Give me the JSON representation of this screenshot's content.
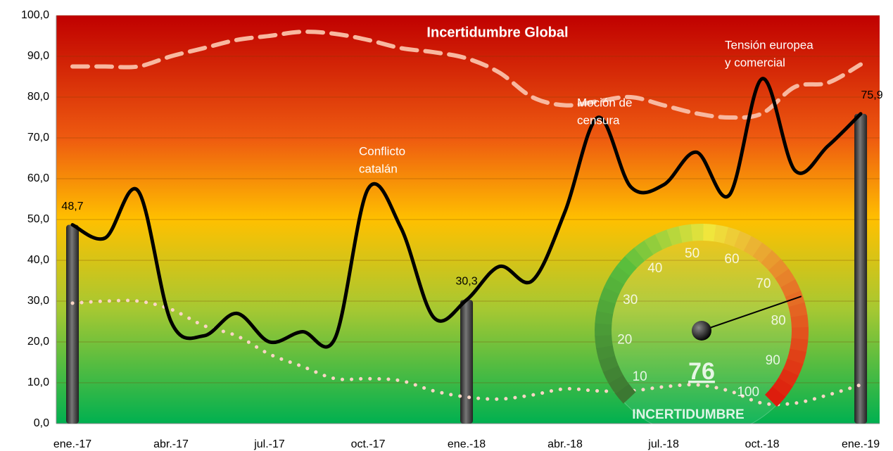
{
  "chart_data": {
    "type": "line",
    "title": "Incertidumbre Global",
    "categories": [
      "ene.-17",
      null,
      null,
      "abr.-17",
      null,
      null,
      "jul.-17",
      null,
      null,
      "oct.-17",
      null,
      null,
      "ene.-18",
      null,
      null,
      "abr.-18",
      null,
      null,
      "jul.-18",
      null,
      null,
      "oct.-18",
      null,
      null,
      "ene.-19"
    ],
    "series": [
      {
        "color": "#000000",
        "style": "solid",
        "values": [
          48.7,
          45.5,
          57,
          25,
          21.5,
          27,
          20,
          22.5,
          21,
          57.5,
          48,
          26,
          30.3,
          38.5,
          35,
          52,
          75,
          58,
          58.5,
          66.5,
          56,
          84.5,
          62,
          68,
          75.9
        ]
      },
      {
        "color": "#f8b8a0",
        "style": "dashed",
        "values": [
          87.5,
          87.5,
          87.5,
          90,
          92,
          94,
          95,
          96,
          95.5,
          94,
          92,
          91,
          89.5,
          86,
          80,
          78,
          79,
          80,
          78,
          76,
          75,
          76,
          82.5,
          83.5,
          88
        ]
      },
      {
        "color": "#fbd5c5",
        "style": "dotted",
        "values": [
          29.5,
          30,
          30,
          28,
          24,
          21.5,
          17,
          14,
          11,
          11,
          10.5,
          8,
          6.5,
          6,
          7,
          8.5,
          8,
          8,
          9,
          9.5,
          8,
          5,
          5,
          7,
          9.5
        ]
      }
    ],
    "bars": {
      "color": "#3a3a3a",
      "values": [
        48.7,
        null,
        null,
        null,
        null,
        null,
        null,
        null,
        null,
        null,
        null,
        null,
        30.3,
        null,
        null,
        null,
        null,
        null,
        null,
        null,
        null,
        null,
        null,
        null,
        75.9
      ],
      "value_labels": [
        "48,7",
        null,
        null,
        null,
        null,
        null,
        null,
        null,
        null,
        null,
        null,
        null,
        "30,3",
        null,
        null,
        null,
        null,
        null,
        null,
        null,
        null,
        null,
        null,
        null,
        "75,9"
      ]
    },
    "ylim": [
      0,
      100
    ],
    "yticks": [
      {
        "value": 0,
        "label": "0,0"
      },
      {
        "value": 10,
        "label": "10,0"
      },
      {
        "value": 20,
        "label": "20,0"
      },
      {
        "value": 30,
        "label": "30,0"
      },
      {
        "value": 40,
        "label": "40,0"
      },
      {
        "value": 50,
        "label": "50,0"
      },
      {
        "value": 60,
        "label": "60,0"
      },
      {
        "value": 70,
        "label": "70,0"
      },
      {
        "value": 80,
        "label": "80,0"
      },
      {
        "value": 90,
        "label": "90,0"
      },
      {
        "value": 100,
        "label": "100,0"
      }
    ],
    "grid": true,
    "annotations": [
      [
        "Conflicto",
        "catalán"
      ],
      [
        "Moción de",
        "censura"
      ],
      [
        "Tensión europea",
        "y comercial"
      ]
    ],
    "gauge": {
      "value": 76,
      "label": "INCERTIDUMBRE",
      "ticks": [
        10,
        20,
        30,
        40,
        50,
        60,
        70,
        80,
        90,
        100
      ]
    }
  }
}
